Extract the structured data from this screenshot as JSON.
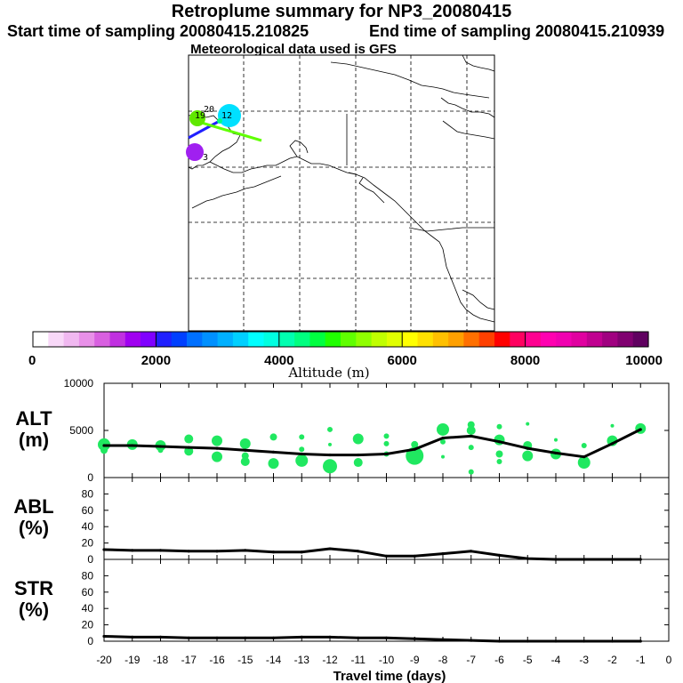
{
  "header": {
    "title": "Retroplume summary for NP3_20080415",
    "start_sampling": "Start time of sampling 20080415.210825",
    "end_sampling": "End time of sampling 20080415.210939",
    "met_data": "Meteorological data used is GFS"
  },
  "map": {
    "plume_labels": [
      "20",
      "19",
      "12",
      "3"
    ]
  },
  "colorbar": {
    "label": "Altitude (m)",
    "ticks": [
      "0",
      "2000",
      "4000",
      "6000",
      "8000",
      "10000"
    ],
    "range": [
      0,
      10000
    ],
    "colors": [
      "#ffffff",
      "#f8d8f8",
      "#f0b8f0",
      "#e890e8",
      "#d860e0",
      "#c030e0",
      "#a000f0",
      "#8000ff",
      "#2020ff",
      "#0040ff",
      "#0070ff",
      "#0090ff",
      "#00b0ff",
      "#00d0ff",
      "#00ffff",
      "#00ffe0",
      "#00ffb0",
      "#00ff80",
      "#00ff40",
      "#20ff00",
      "#60ff00",
      "#90ff00",
      "#c0ff00",
      "#e0ff00",
      "#ffff00",
      "#ffe000",
      "#ffc000",
      "#ffa000",
      "#ff7000",
      "#ff4000",
      "#ff0000",
      "#ff0060",
      "#ff0090",
      "#ff00b0",
      "#f000b0",
      "#e000a0",
      "#c00090",
      "#a00080",
      "#800070",
      "#600060"
    ]
  },
  "chart_data": [
    {
      "type": "line",
      "panel": "ALT",
      "ylabel": "ALT",
      "yunit": "(m)",
      "ylim": [
        0,
        10000
      ],
      "yticks": [
        "10000",
        "5000",
        "0"
      ],
      "xlim": [
        -20,
        0
      ],
      "x": [
        -20,
        -19,
        -18,
        -17,
        -16,
        -15,
        -14,
        -13,
        -12,
        -11,
        -10,
        -9,
        -8,
        -7,
        -6,
        -5,
        -4,
        -3,
        -2,
        -1
      ],
      "values": [
        3400,
        3400,
        3300,
        3200,
        3100,
        2900,
        2700,
        2500,
        2400,
        2400,
        2500,
        3000,
        4200,
        4400,
        3800,
        3100,
        2600,
        2200,
        3600,
        5100
      ],
      "marker_color": "#20e860",
      "scatter_points": [
        [
          -20,
          3500,
          7
        ],
        [
          -20,
          2900,
          4
        ],
        [
          -19,
          3500,
          6
        ],
        [
          -18,
          3400,
          6
        ],
        [
          -18,
          2900,
          3
        ],
        [
          -17,
          4100,
          5
        ],
        [
          -17,
          2800,
          5
        ],
        [
          -16,
          3900,
          6
        ],
        [
          -16,
          2200,
          6
        ],
        [
          -15,
          3600,
          6
        ],
        [
          -15,
          2300,
          4
        ],
        [
          -15,
          1700,
          5
        ],
        [
          -14,
          4300,
          4
        ],
        [
          -14,
          1500,
          6
        ],
        [
          -13,
          4300,
          3
        ],
        [
          -13,
          3000,
          3
        ],
        [
          -13,
          1800,
          7
        ],
        [
          -12,
          5100,
          3
        ],
        [
          -12,
          3500,
          2
        ],
        [
          -12,
          1200,
          8
        ],
        [
          -11,
          4100,
          6
        ],
        [
          -11,
          1600,
          5
        ],
        [
          -10,
          4400,
          3
        ],
        [
          -10,
          3600,
          3
        ],
        [
          -10,
          2500,
          3
        ],
        [
          -9,
          2300,
          10
        ],
        [
          -9,
          3500,
          4
        ],
        [
          -9,
          1800,
          3
        ],
        [
          -8,
          5100,
          7
        ],
        [
          -8,
          3800,
          3
        ],
        [
          -8,
          2200,
          2
        ],
        [
          -7,
          5000,
          5
        ],
        [
          -7,
          5600,
          4
        ],
        [
          -7,
          3200,
          3
        ],
        [
          -7,
          600,
          3
        ],
        [
          -6,
          4000,
          6
        ],
        [
          -6,
          2500,
          4
        ],
        [
          -6,
          1700,
          3
        ],
        [
          -6,
          5400,
          3
        ],
        [
          -5,
          3400,
          5
        ],
        [
          -5,
          2300,
          6
        ],
        [
          -5,
          5700,
          2
        ],
        [
          -4,
          2500,
          6
        ],
        [
          -4,
          4000,
          2
        ],
        [
          -3,
          1600,
          7
        ],
        [
          -3,
          3400,
          3
        ],
        [
          -2,
          3900,
          6
        ],
        [
          -2,
          5500,
          2
        ],
        [
          -1,
          5200,
          6
        ]
      ]
    },
    {
      "type": "line",
      "panel": "ABL",
      "ylabel": "ABL",
      "yunit": "(%)",
      "ylim": [
        0,
        100
      ],
      "yticks": [
        "80",
        "60",
        "40",
        "20",
        "0"
      ],
      "xlim": [
        -20,
        0
      ],
      "x": [
        -20,
        -19,
        -18,
        -17,
        -16,
        -15,
        -14,
        -13,
        -12,
        -11,
        -10,
        -9,
        -8,
        -7,
        -6,
        -5,
        -4,
        -3,
        -2,
        -1
      ],
      "values": [
        12,
        11,
        11,
        10,
        10,
        11,
        9,
        9,
        13,
        10,
        4,
        4,
        7,
        10,
        5,
        1,
        0,
        0,
        0,
        0
      ]
    },
    {
      "type": "line",
      "panel": "STR",
      "ylabel": "STR",
      "yunit": "(%)",
      "ylim": [
        0,
        100
      ],
      "yticks": [
        "80",
        "60",
        "40",
        "20",
        "0"
      ],
      "xlim": [
        -20,
        0
      ],
      "x": [
        -20,
        -19,
        -18,
        -17,
        -16,
        -15,
        -14,
        -13,
        -12,
        -11,
        -10,
        -9,
        -8,
        -7,
        -6,
        -5,
        -4,
        -3,
        -2,
        -1
      ],
      "values": [
        6,
        5,
        5,
        4,
        4,
        4,
        4,
        5,
        5,
        4,
        4,
        3,
        2,
        1,
        0,
        0,
        0,
        0,
        0,
        0
      ],
      "xlabel": "Travel time (days)",
      "xticks": [
        "-20",
        "-19",
        "-18",
        "-17",
        "-16",
        "-15",
        "-14",
        "-13",
        "-12",
        "-11",
        "-10",
        "-9",
        "-8",
        "-7",
        "-6",
        "-5",
        "-4",
        "-3",
        "-2",
        "-1",
        "0"
      ]
    }
  ]
}
